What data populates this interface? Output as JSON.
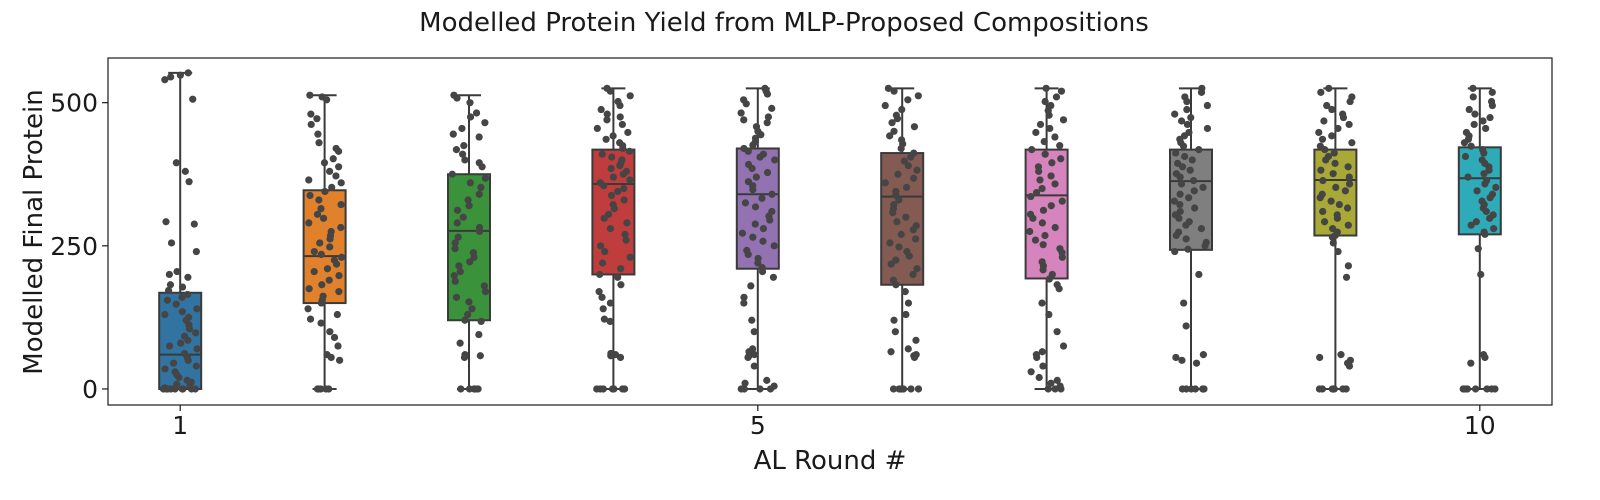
{
  "chart_data": {
    "type": "box",
    "title": "Modelled Protein Yield from MLP-Proposed Compositions",
    "xlabel": "AL Round #",
    "ylabel": "Modelled Final Protein",
    "xlim": [
      0.5,
      10.5
    ],
    "ylim": [
      -28,
      578
    ],
    "x_ticks": [
      1,
      5,
      10
    ],
    "y_ticks": [
      0,
      250,
      500
    ],
    "grid": false,
    "legend": "none",
    "point_color": "#454545",
    "box_edge_color": "#3a3a3a",
    "series": [
      {
        "round": 1,
        "color": "#3274a1",
        "q1": 0,
        "median": 60,
        "q3": 168,
        "whisker_low": 0,
        "whisker_high": 552,
        "points": [
          552,
          548,
          545,
          540,
          506,
          395,
          380,
          362,
          292,
          288,
          255,
          240,
          205,
          200,
          195,
          182,
          178,
          172,
          165,
          160,
          155,
          148,
          140,
          135,
          130,
          125,
          120,
          112,
          105,
          98,
          92,
          85,
          80,
          75,
          70,
          62,
          55,
          50,
          45,
          40,
          35,
          30,
          25,
          20,
          15,
          12,
          8,
          5,
          2,
          0,
          0,
          0,
          0,
          0,
          0,
          0,
          0,
          0
        ]
      },
      {
        "round": 2,
        "color": "#e1812c",
        "q1": 150,
        "median": 232,
        "q3": 347,
        "whisker_low": 0,
        "whisker_high": 513,
        "points": [
          513,
          510,
          505,
          480,
          472,
          462,
          445,
          430,
          420,
          415,
          402,
          395,
          388,
          380,
          372,
          365,
          360,
          352,
          345,
          338,
          330,
          322,
          315,
          305,
          298,
          290,
          282,
          275,
          268,
          262,
          255,
          248,
          240,
          235,
          230,
          225,
          218,
          210,
          205,
          198,
          190,
          182,
          175,
          170,
          162,
          155,
          150,
          140,
          130,
          122,
          115,
          100,
          90,
          75,
          60,
          55,
          50,
          0,
          0,
          0,
          0,
          0
        ]
      },
      {
        "round": 3,
        "color": "#3a923a",
        "q1": 120,
        "median": 276,
        "q3": 375,
        "whisker_low": 0,
        "whisker_high": 513,
        "points": [
          513,
          508,
          500,
          482,
          475,
          465,
          455,
          445,
          440,
          425,
          418,
          410,
          400,
          395,
          388,
          375,
          368,
          360,
          352,
          340,
          330,
          320,
          312,
          300,
          290,
          282,
          275,
          265,
          255,
          245,
          238,
          230,
          222,
          215,
          205,
          198,
          188,
          180,
          170,
          160,
          152,
          140,
          130,
          120,
          118,
          95,
          80,
          60,
          58,
          55,
          0,
          0,
          0,
          0,
          0,
          0
        ]
      },
      {
        "round": 4,
        "color": "#c03d3e",
        "q1": 200,
        "median": 358,
        "q3": 418,
        "whisker_low": 0,
        "whisker_high": 525,
        "points": [
          525,
          520,
          512,
          502,
          495,
          488,
          480,
          475,
          470,
          462,
          455,
          448,
          442,
          436,
          430,
          425,
          420,
          415,
          410,
          405,
          400,
          395,
          390,
          385,
          380,
          375,
          370,
          365,
          360,
          355,
          350,
          345,
          338,
          330,
          322,
          315,
          305,
          298,
          290,
          280,
          270,
          260,
          250,
          240,
          230,
          220,
          210,
          200,
          195,
          182,
          170,
          160,
          150,
          140,
          122,
          118,
          62,
          60,
          58,
          55,
          0,
          0,
          0,
          0,
          0,
          0,
          0
        ]
      },
      {
        "round": 5,
        "color": "#9372b2",
        "q1": 210,
        "median": 340,
        "q3": 420,
        "whisker_low": 0,
        "whisker_high": 525,
        "points": [
          525,
          520,
          515,
          505,
          498,
          490,
          482,
          475,
          470,
          465,
          458,
          450,
          444,
          438,
          432,
          426,
          420,
          415,
          410,
          405,
          400,
          392,
          385,
          378,
          370,
          362,
          355,
          348,
          340,
          333,
          325,
          318,
          310,
          302,
          295,
          288,
          280,
          272,
          265,
          258,
          250,
          242,
          235,
          228,
          220,
          212,
          205,
          195,
          180,
          160,
          150,
          120,
          100,
          70,
          65,
          60,
          58,
          55,
          40,
          15,
          10,
          5,
          0,
          0,
          0,
          0
        ]
      },
      {
        "round": 6,
        "color": "#845b53",
        "q1": 182,
        "median": 336,
        "q3": 412,
        "whisker_low": 0,
        "whisker_high": 525,
        "points": [
          525,
          520,
          512,
          505,
          495,
          488,
          478,
          472,
          465,
          458,
          450,
          442,
          435,
          428,
          420,
          412,
          405,
          398,
          390,
          382,
          375,
          368,
          360,
          352,
          345,
          338,
          330,
          322,
          315,
          308,
          300,
          292,
          285,
          278,
          270,
          262,
          255,
          248,
          240,
          232,
          225,
          218,
          210,
          200,
          190,
          182,
          170,
          150,
          130,
          120,
          100,
          85,
          70,
          65,
          60,
          58,
          55,
          0,
          0,
          0,
          0,
          0,
          0,
          0
        ]
      },
      {
        "round": 7,
        "color": "#d684bd",
        "q1": 193,
        "median": 338,
        "q3": 418,
        "whisker_low": 0,
        "whisker_high": 525,
        "points": [
          525,
          520,
          510,
          502,
          495,
          486,
          478,
          470,
          462,
          455,
          448,
          440,
          432,
          425,
          418,
          410,
          402,
          395,
          388,
          380,
          372,
          365,
          358,
          350,
          343,
          336,
          328,
          320,
          312,
          305,
          298,
          290,
          282,
          275,
          268,
          260,
          252,
          245,
          238,
          230,
          222,
          215,
          208,
          200,
          192,
          182,
          175,
          150,
          130,
          100,
          75,
          65,
          60,
          55,
          40,
          30,
          20,
          15,
          10,
          5,
          0,
          0,
          0
        ]
      },
      {
        "round": 8,
        "color": "#7f7f7f",
        "q1": 243,
        "median": 363,
        "q3": 418,
        "whisker_low": 0,
        "whisker_high": 525,
        "points": [
          525,
          518,
          510,
          502,
          495,
          488,
          480,
          474,
          468,
          462,
          455,
          448,
          442,
          436,
          430,
          424,
          418,
          412,
          406,
          400,
          394,
          388,
          382,
          376,
          370,
          364,
          358,
          352,
          346,
          340,
          334,
          328,
          322,
          316,
          310,
          304,
          298,
          292,
          286,
          280,
          274,
          268,
          262,
          256,
          250,
          244,
          240,
          200,
          150,
          110,
          60,
          55,
          50,
          45,
          0,
          0,
          0,
          0,
          0,
          0,
          0
        ]
      },
      {
        "round": 9,
        "color": "#a9a938",
        "q1": 268,
        "median": 365,
        "q3": 418,
        "whisker_low": 0,
        "whisker_high": 525,
        "points": [
          525,
          518,
          510,
          502,
          495,
          488,
          480,
          474,
          468,
          462,
          455,
          448,
          442,
          436,
          430,
          424,
          418,
          412,
          406,
          400,
          394,
          388,
          382,
          376,
          370,
          364,
          358,
          352,
          346,
          340,
          334,
          328,
          322,
          316,
          310,
          304,
          298,
          292,
          286,
          280,
          274,
          268,
          265,
          255,
          240,
          215,
          195,
          60,
          55,
          50,
          45,
          40,
          0,
          0,
          0,
          0,
          0,
          0,
          0
        ]
      },
      {
        "round": 10,
        "color": "#2eabb8",
        "q1": 270,
        "median": 368,
        "q3": 422,
        "whisker_low": 0,
        "whisker_high": 525,
        "points": [
          525,
          518,
          510,
          502,
          495,
          488,
          480,
          474,
          468,
          462,
          455,
          448,
          442,
          436,
          430,
          424,
          418,
          412,
          406,
          400,
          394,
          388,
          382,
          376,
          370,
          364,
          358,
          352,
          346,
          340,
          334,
          328,
          322,
          316,
          310,
          304,
          298,
          292,
          286,
          280,
          274,
          270,
          245,
          200,
          60,
          55,
          45,
          0,
          0,
          0,
          0,
          0,
          0,
          0,
          0
        ]
      }
    ]
  }
}
